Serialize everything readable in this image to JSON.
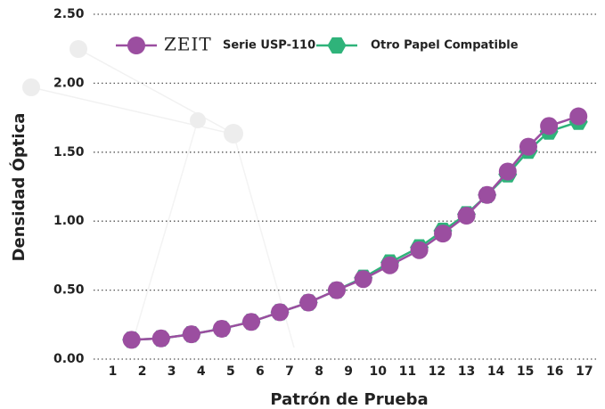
{
  "chart_data": {
    "type": "line",
    "x_label": "Patrón de Prueba",
    "y_label": "Densidad Óptica",
    "legend_logo": "ZEIT",
    "xlim": [
      0.35,
      17.7
    ],
    "xticks": [
      1,
      2,
      3,
      4,
      5,
      6,
      7,
      8,
      9,
      10,
      11,
      12,
      13,
      14,
      15,
      16,
      17
    ],
    "ylim": [
      0,
      2.5
    ],
    "yticks": [
      {
        "value": 0,
        "label": "0.00"
      },
      {
        "value": 0.5,
        "label": "0.50"
      },
      {
        "value": 1,
        "label": "1.00"
      },
      {
        "value": 1.5,
        "label": "1.50"
      },
      {
        "value": 2,
        "label": "2.00"
      },
      {
        "value": 2.5,
        "label": "2.50"
      }
    ],
    "grid": true,
    "series": [
      {
        "name": "Otro Papel Compatible",
        "color": "#2fb37a",
        "marker": "hexagon",
        "x": [
          1.64,
          2.64,
          3.67,
          4.7,
          5.7,
          6.67,
          7.64,
          8.6,
          9.5,
          10.4,
          11.4,
          12.2,
          13.0,
          13.7,
          14.4,
          15.1,
          15.8,
          16.8
        ],
        "values": [
          0.14,
          0.15,
          0.18,
          0.22,
          0.27,
          0.34,
          0.41,
          0.5,
          0.59,
          0.7,
          0.81,
          0.93,
          1.05,
          1.19,
          1.34,
          1.51,
          1.65,
          1.72
        ]
      },
      {
        "name": "Serie USP-110",
        "color": "#9b4ea0",
        "marker": "circle",
        "x": [
          1.64,
          2.64,
          3.67,
          4.7,
          5.7,
          6.67,
          7.64,
          8.6,
          9.5,
          10.4,
          11.4,
          12.2,
          13.0,
          13.7,
          14.4,
          15.1,
          15.8,
          16.8
        ],
        "values": [
          0.14,
          0.15,
          0.18,
          0.22,
          0.27,
          0.34,
          0.41,
          0.5,
          0.58,
          0.68,
          0.79,
          0.91,
          1.04,
          1.19,
          1.36,
          1.54,
          1.69,
          1.76
        ]
      }
    ]
  }
}
